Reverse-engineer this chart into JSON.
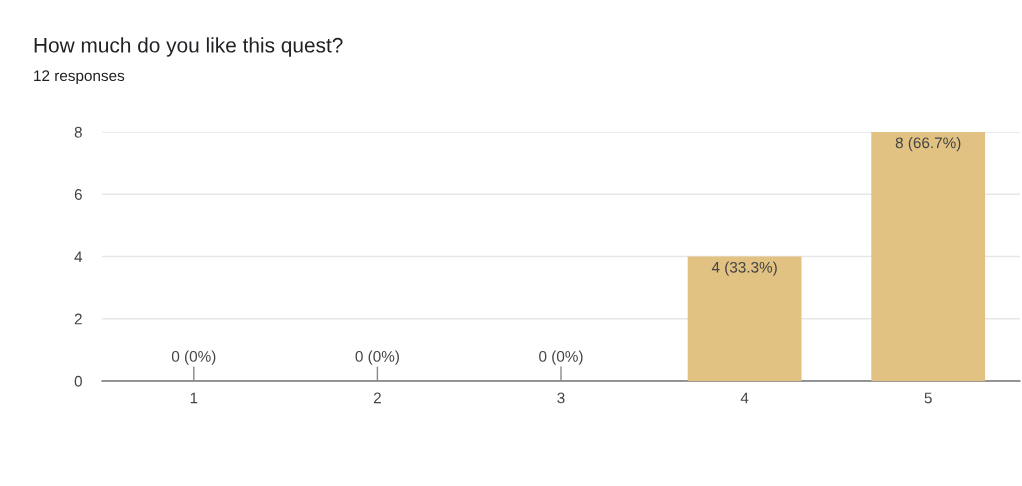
{
  "chart_data": {
    "type": "bar",
    "title": "How much do you like this quest?",
    "subtitle": "12 responses",
    "categories": [
      "1",
      "2",
      "3",
      "4",
      "5"
    ],
    "values": [
      0,
      0,
      0,
      4,
      8
    ],
    "value_labels": [
      "0 (0%)",
      "0 (0%)",
      "0 (0%)",
      "4 (33.3%)",
      "8 (66.7%)"
    ],
    "color": "#e1c282",
    "ylim": [
      0,
      8
    ],
    "yticks": [
      0,
      2,
      4,
      6,
      8
    ],
    "grid": "y",
    "legend": false
  }
}
